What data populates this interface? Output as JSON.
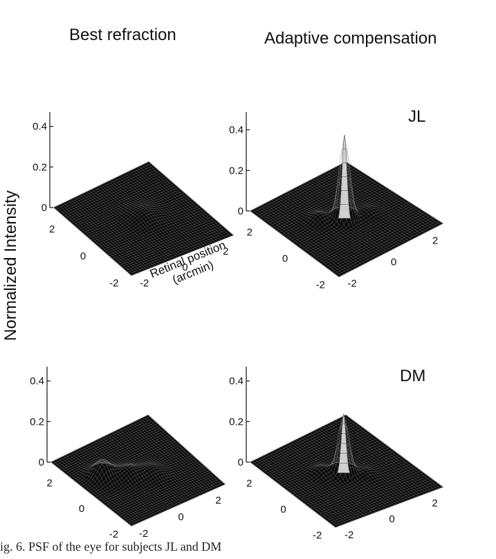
{
  "figure": {
    "column_titles": {
      "left": "Best refraction",
      "right": "Adaptive compensation"
    },
    "y_axis_label": "Normalized Intensity",
    "x_axis_label": {
      "line1": "Retinal position",
      "line2": "(arcmin)"
    },
    "caption_fragment": "ig. 6.   PSF of the eye for subjects JL and DM",
    "subjects": [
      "JL",
      "DM"
    ]
  },
  "chart_data": [
    {
      "type": "surface",
      "subject": "JL",
      "condition": "Best refraction",
      "z_ticks": [
        "0",
        "0.2",
        "0.4"
      ],
      "zlim": [
        0,
        0.45
      ],
      "left_axis_ticks": [
        "2",
        "0",
        "-2"
      ],
      "right_axis_ticks": [
        "-2",
        "0",
        "2"
      ],
      "xlim": [
        -2.5,
        2.5
      ],
      "ylim": [
        -2.5,
        2.5
      ],
      "peaks": [
        {
          "x": 0.2,
          "y": 0.1,
          "height": 0.03,
          "width": 0.5
        }
      ]
    },
    {
      "type": "surface",
      "subject": "JL",
      "condition": "Adaptive compensation",
      "z_ticks": [
        "0",
        "0.2",
        "0.4"
      ],
      "zlim": [
        0,
        0.45
      ],
      "left_axis_ticks": [
        "2",
        "0",
        "-2"
      ],
      "right_axis_ticks": [
        "-2",
        "0",
        "2"
      ],
      "xlim": [
        -2.5,
        2.5
      ],
      "ylim": [
        -2.5,
        2.5
      ],
      "peaks": [
        {
          "x": 0.0,
          "y": 0.0,
          "height": 0.41,
          "width": 0.2
        },
        {
          "x": -0.8,
          "y": 0.5,
          "height": 0.03,
          "width": 0.3
        },
        {
          "x": 0.9,
          "y": -0.3,
          "height": 0.02,
          "width": 0.3
        }
      ]
    },
    {
      "type": "surface",
      "subject": "DM",
      "condition": "Best refraction",
      "z_ticks": [
        "0",
        "0.2",
        "0.4"
      ],
      "zlim": [
        0,
        0.45
      ],
      "left_axis_ticks": [
        "2",
        "0",
        "-2"
      ],
      "right_axis_ticks": [
        "-2",
        "0",
        "2"
      ],
      "xlim": [
        -2.5,
        2.5
      ],
      "ylim": [
        -2.5,
        2.5
      ],
      "peaks": [
        {
          "x": -1.4,
          "y": 0.6,
          "height": 0.08,
          "width": 0.35
        },
        {
          "x": -0.5,
          "y": 0.0,
          "height": 0.04,
          "width": 0.4
        },
        {
          "x": 0.4,
          "y": -0.4,
          "height": 0.03,
          "width": 0.4
        }
      ]
    },
    {
      "type": "surface",
      "subject": "DM",
      "condition": "Adaptive compensation",
      "z_ticks": [
        "0",
        "0.2",
        "0.4"
      ],
      "zlim": [
        0,
        0.45
      ],
      "left_axis_ticks": [
        "2",
        "0",
        "-2"
      ],
      "right_axis_ticks": [
        "-2",
        "0",
        "2"
      ],
      "xlim": [
        -2.5,
        2.5
      ],
      "ylim": [
        -2.5,
        2.5
      ],
      "peaks": [
        {
          "x": 0.0,
          "y": 0.0,
          "height": 0.29,
          "width": 0.2
        },
        {
          "x": -0.7,
          "y": 0.4,
          "height": 0.03,
          "width": 0.3
        },
        {
          "x": 0.6,
          "y": -0.5,
          "height": 0.02,
          "width": 0.3
        }
      ]
    }
  ]
}
